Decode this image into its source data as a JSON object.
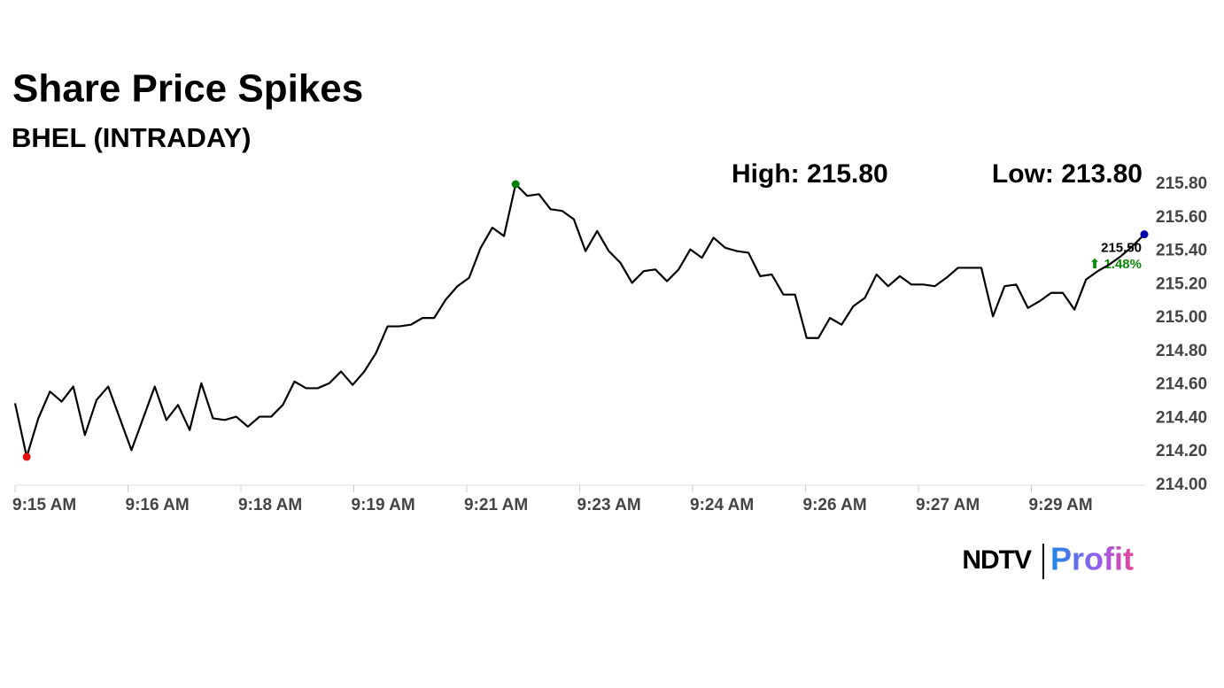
{
  "chart_data": {
    "type": "line",
    "title": "Share Price Spikes",
    "subtitle": "BHEL (INTRADAY)",
    "high_label": "High: 215.80",
    "low_label": "Low: 213.80",
    "change_label": "⬆ 1.48%",
    "color": "#000000",
    "values": [
      214.49,
      214.17,
      214.4,
      214.56,
      214.5,
      214.59,
      214.3,
      214.51,
      214.59,
      214.4,
      214.21,
      214.4,
      214.59,
      214.39,
      214.48,
      214.33,
      214.61,
      214.4,
      214.39,
      214.41,
      214.35,
      214.41,
      214.41,
      214.48,
      214.62,
      214.58,
      214.58,
      214.61,
      214.68,
      214.6,
      214.68,
      214.79,
      214.95,
      214.95,
      214.96,
      215.0,
      215.0,
      215.11,
      215.19,
      215.24,
      215.42,
      215.54,
      215.49,
      215.8,
      215.73,
      215.74,
      215.65,
      215.64,
      215.59,
      215.4,
      215.52,
      215.4,
      215.33,
      215.21,
      215.28,
      215.29,
      215.22,
      215.29,
      215.41,
      215.36,
      215.48,
      215.42,
      215.4,
      215.39,
      215.25,
      215.26,
      215.14,
      215.14,
      214.88,
      214.88,
      215.0,
      214.96,
      215.07,
      215.12,
      215.26,
      215.19,
      215.25,
      215.2,
      215.2,
      215.19,
      215.24,
      215.3,
      215.3,
      215.3,
      215.01,
      215.19,
      215.2,
      215.06,
      215.1,
      215.15,
      215.15,
      215.05,
      215.23,
      215.28,
      215.32,
      215.37,
      215.43,
      215.5
    ],
    "value_labels": [
      null,
      null,
      null,
      null,
      null,
      null,
      null,
      null,
      null,
      null,
      null,
      null,
      null,
      null,
      null,
      null,
      null,
      null,
      null,
      null,
      null,
      null,
      null,
      null,
      null,
      null,
      null,
      null,
      null,
      null,
      null,
      null,
      null,
      null,
      null,
      null,
      null,
      null,
      null,
      null,
      null,
      null,
      null,
      null,
      null,
      null,
      null,
      null,
      null,
      null,
      null,
      null,
      null,
      null,
      null,
      null,
      null,
      null,
      null,
      null,
      null,
      null,
      null,
      null,
      null,
      null,
      null,
      null,
      null,
      null,
      null,
      null,
      null,
      null,
      null,
      null,
      null,
      null,
      null,
      null,
      null,
      null,
      null,
      null,
      null,
      null,
      null,
      null,
      null,
      null,
      null,
      null,
      null,
      null,
      null,
      null,
      null,
      "215.50"
    ],
    "markers": [
      {
        "index": 1,
        "color": "#e01010"
      },
      {
        "index": 43,
        "color": "#008000"
      },
      {
        "index": 97,
        "color": "#0000aa"
      }
    ],
    "xlim": [
      0,
      97
    ],
    "xticks": [
      {
        "value": 0,
        "label": "9:15 AM"
      },
      {
        "value": 9.7,
        "label": "9:16 AM"
      },
      {
        "value": 19.4,
        "label": "9:18 AM"
      },
      {
        "value": 29.1,
        "label": "9:19 AM"
      },
      {
        "value": 38.8,
        "label": "9:21 AM"
      },
      {
        "value": 48.5,
        "label": "9:23 AM"
      },
      {
        "value": 58.2,
        "label": "9:24 AM"
      },
      {
        "value": 67.9,
        "label": "9:26 AM"
      },
      {
        "value": 77.6,
        "label": "9:27 AM"
      },
      {
        "value": 87.3,
        "label": "9:29 AM"
      }
    ],
    "ylim": [
      214,
      215.8
    ],
    "yticks": [
      {
        "value": 214,
        "label": "214.00"
      },
      {
        "value": 214.2,
        "label": "214.20"
      },
      {
        "value": 214.4,
        "label": "214.40"
      },
      {
        "value": 214.6,
        "label": "214.60"
      },
      {
        "value": 214.8,
        "label": "214.80"
      },
      {
        "value": 215,
        "label": "215.00"
      },
      {
        "value": 215.2,
        "label": "215.20"
      },
      {
        "value": 215.4,
        "label": "215.40"
      },
      {
        "value": 215.6,
        "label": "215.60"
      },
      {
        "value": 215.8,
        "label": "215.80"
      }
    ]
  },
  "logo": {
    "left": "NDTV",
    "right": "Profit"
  }
}
